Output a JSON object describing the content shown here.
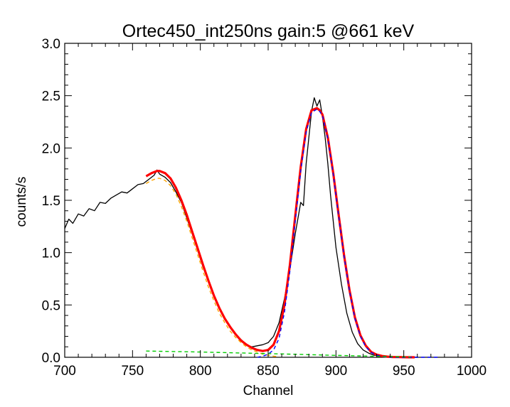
{
  "chart_data": {
    "type": "line",
    "title": "Ortec450_int250ns gain:5 @661 keV",
    "xlabel": "Channel",
    "ylabel": "counts/s",
    "xlim": [
      700,
      1000
    ],
    "ylim": [
      0,
      3.0
    ],
    "x_ticks": [
      700,
      750,
      800,
      850,
      900,
      950,
      1000
    ],
    "x_tick_labels": [
      "700",
      "750",
      "800",
      "850",
      "900",
      "950",
      "1000"
    ],
    "y_ticks": [
      0,
      0.5,
      1.0,
      1.5,
      2.0,
      2.5,
      3.0
    ],
    "y_tick_labels": [
      "0.0",
      "0.5",
      "1.0",
      "1.5",
      "2.0",
      "2.5",
      "3.0"
    ],
    "grid": false,
    "legend": "none",
    "series": [
      {
        "style": "solid-thin",
        "color": "#000000",
        "x": [
          700,
          703,
          706,
          710,
          714,
          718,
          722,
          726,
          730,
          734,
          738,
          742,
          746,
          750,
          754,
          758,
          762,
          766,
          768,
          770,
          774,
          778,
          782,
          786,
          790,
          794,
          798,
          802,
          806,
          810,
          814,
          818,
          822,
          826,
          830,
          834,
          838,
          842,
          846,
          850,
          854,
          858,
          862,
          866,
          870,
          874,
          876,
          878,
          880,
          882,
          884,
          886,
          888,
          890,
          892,
          894,
          896,
          898,
          900,
          904,
          908,
          912,
          916,
          920,
          924,
          928,
          932,
          936,
          940,
          946,
          952,
          960
        ],
        "y": [
          1.23,
          1.32,
          1.28,
          1.37,
          1.35,
          1.42,
          1.4,
          1.48,
          1.47,
          1.52,
          1.55,
          1.58,
          1.57,
          1.61,
          1.65,
          1.66,
          1.7,
          1.74,
          1.79,
          1.75,
          1.72,
          1.67,
          1.58,
          1.48,
          1.33,
          1.18,
          1.02,
          0.86,
          0.72,
          0.58,
          0.46,
          0.37,
          0.29,
          0.22,
          0.17,
          0.12,
          0.1,
          0.11,
          0.12,
          0.14,
          0.2,
          0.33,
          0.56,
          0.84,
          1.18,
          1.48,
          1.45,
          1.85,
          2.1,
          2.35,
          2.48,
          2.4,
          2.46,
          2.3,
          2.1,
          1.85,
          1.55,
          1.3,
          1.05,
          0.7,
          0.42,
          0.24,
          0.13,
          0.07,
          0.04,
          0.02,
          0.015,
          0.01,
          0.005,
          0.003,
          0.002,
          0.0
        ]
      },
      {
        "style": "solid-thick",
        "color": "#ff0000",
        "x": [
          760,
          764,
          768,
          770,
          774,
          778,
          782,
          786,
          790,
          794,
          798,
          802,
          806,
          810,
          814,
          818,
          822,
          826,
          830,
          834,
          838,
          842,
          846,
          850,
          854,
          858,
          862,
          866,
          870,
          874,
          878,
          882,
          886,
          888,
          890,
          894,
          898,
          902,
          906,
          910,
          914,
          918,
          922,
          926,
          930,
          934,
          938,
          942,
          946,
          950,
          954,
          958
        ],
        "y": [
          1.73,
          1.76,
          1.78,
          1.78,
          1.76,
          1.71,
          1.62,
          1.5,
          1.36,
          1.2,
          1.04,
          0.88,
          0.73,
          0.59,
          0.47,
          0.37,
          0.29,
          0.22,
          0.16,
          0.12,
          0.09,
          0.07,
          0.06,
          0.07,
          0.12,
          0.25,
          0.5,
          0.88,
          1.35,
          1.82,
          2.18,
          2.36,
          2.38,
          2.36,
          2.32,
          2.1,
          1.76,
          1.36,
          0.97,
          0.64,
          0.38,
          0.21,
          0.11,
          0.05,
          0.025,
          0.012,
          0.006,
          0.003,
          0.002,
          0.001,
          0.0,
          0.0
        ]
      },
      {
        "style": "dashed",
        "color": "#ffa500",
        "x": [
          760,
          764,
          768,
          770,
          774,
          778,
          782,
          786,
          790,
          794,
          798,
          802,
          806,
          810,
          814,
          818,
          822,
          826,
          830,
          834,
          838,
          842,
          846,
          850,
          854,
          858
        ],
        "y": [
          1.66,
          1.69,
          1.71,
          1.71,
          1.69,
          1.64,
          1.56,
          1.44,
          1.3,
          1.14,
          0.98,
          0.82,
          0.67,
          0.54,
          0.42,
          0.33,
          0.25,
          0.19,
          0.14,
          0.1,
          0.07,
          0.05,
          0.03,
          0.02,
          0.01,
          0.005
        ]
      },
      {
        "style": "dashed",
        "color": "#0000ff",
        "x": [
          842,
          846,
          850,
          854,
          858,
          862,
          866,
          870,
          874,
          878,
          882,
          886,
          888,
          890,
          894,
          898,
          902,
          906,
          910,
          914,
          918,
          922,
          926,
          930,
          934,
          938,
          942,
          946,
          950,
          954,
          958,
          962,
          966,
          970,
          975
        ],
        "y": [
          0.0,
          0.01,
          0.03,
          0.07,
          0.18,
          0.43,
          0.82,
          1.3,
          1.78,
          2.15,
          2.34,
          2.37,
          2.35,
          2.31,
          2.09,
          1.75,
          1.35,
          0.96,
          0.63,
          0.37,
          0.2,
          0.1,
          0.045,
          0.02,
          0.008,
          0.003,
          0.001,
          0.0,
          0.0,
          0.0,
          0.0,
          0.0,
          0.0,
          0.0,
          0.0
        ]
      },
      {
        "style": "dashed",
        "color": "#00cc00",
        "x": [
          760,
          780,
          800,
          820,
          840,
          860,
          880,
          900,
          920,
          940,
          955
        ],
        "y": [
          0.06,
          0.055,
          0.05,
          0.044,
          0.038,
          0.032,
          0.025,
          0.018,
          0.012,
          0.006,
          0.002
        ]
      }
    ]
  }
}
